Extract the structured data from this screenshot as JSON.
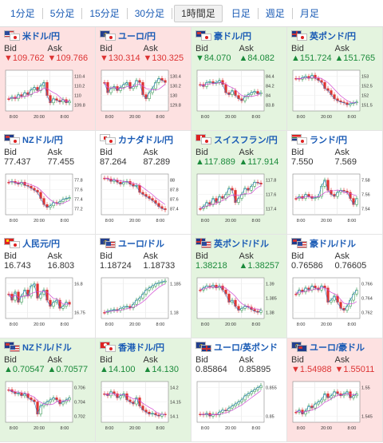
{
  "tabs": [
    {
      "label": "1分足",
      "active": false
    },
    {
      "label": "5分足",
      "active": false
    },
    {
      "label": "15分足",
      "active": false
    },
    {
      "label": "30分足",
      "active": false
    },
    {
      "label": "1時間足",
      "active": true
    },
    {
      "label": "日足",
      "active": false
    },
    {
      "label": "週足",
      "active": false
    },
    {
      "label": "月足",
      "active": false
    }
  ],
  "colors": {
    "down": "#d33333",
    "up": "#1a8a3a",
    "link": "#1a5bb5",
    "down_bg": "#fde1e1",
    "up_bg": "#e4f4df",
    "ma_line": "#d24ad2",
    "price_line": "#2a7dcf"
  },
  "bid_label": "Bid",
  "ask_label": "Ask",
  "x_ticks": [
    "8:00",
    "20:00",
    "8:00"
  ],
  "pairs": [
    {
      "name": "米ドル/円",
      "flags": [
        "us",
        "jp"
      ],
      "trend": "down",
      "bid": "▼109.762",
      "ask": "▼109.766",
      "chart_data": {
        "type": "candlestick",
        "yticks": [
          "110.4",
          "110.2",
          "110",
          "109.8"
        ],
        "path": [
          0.7,
          0.66,
          0.7,
          0.6,
          0.64,
          0.55,
          0.6,
          0.48,
          0.42,
          0.5,
          0.38,
          0.3,
          0.62,
          0.8,
          0.7,
          0.74,
          0.78,
          0.72,
          0.8,
          0.76
        ]
      }
    },
    {
      "name": "ユーロ/円",
      "flags": [
        "eu",
        "jp"
      ],
      "trend": "down",
      "bid": "▼130.314",
      "ask": "▼130.325",
      "chart_data": {
        "type": "candlestick",
        "yticks": [
          "130.4",
          "130.2",
          "130",
          "129.8"
        ],
        "path": [
          0.3,
          0.55,
          0.45,
          0.4,
          0.5,
          0.42,
          0.35,
          0.3,
          0.45,
          0.4,
          0.25,
          0.3,
          0.6,
          0.7,
          0.55,
          0.45,
          0.3,
          0.2,
          0.25,
          0.3
        ]
      }
    },
    {
      "name": "豪ドル/円",
      "flags": [
        "au",
        "jp"
      ],
      "trend": "up",
      "bid": "▼84.070",
      "ask": "▲84.082",
      "chart_data": {
        "type": "candlestick",
        "yticks": [
          "84.4",
          "84.2",
          "84",
          "83.8"
        ],
        "path": [
          0.35,
          0.4,
          0.3,
          0.28,
          0.32,
          0.3,
          0.25,
          0.35,
          0.55,
          0.6,
          0.5,
          0.62,
          0.7,
          0.75,
          0.65,
          0.6,
          0.55,
          0.52,
          0.58,
          0.55
        ]
      }
    },
    {
      "name": "英ポンド/円",
      "flags": [
        "gb",
        "jp"
      ],
      "trend": "up",
      "bid": "▲151.724",
      "ask": "▲151.765",
      "chart_data": {
        "type": "candlestick",
        "yticks": [
          "153",
          "152.5",
          "152",
          "151.5"
        ],
        "path": [
          0.2,
          0.22,
          0.18,
          0.15,
          0.2,
          0.12,
          0.2,
          0.25,
          0.3,
          0.45,
          0.5,
          0.6,
          0.7,
          0.75,
          0.78,
          0.8,
          0.85,
          0.82,
          0.8,
          0.78
        ]
      }
    },
    {
      "name": "NZドル/円",
      "flags": [
        "nz",
        "jp"
      ],
      "trend": "flat",
      "bid": "77.437",
      "ask": "77.455",
      "chart_data": {
        "type": "candlestick",
        "yticks": [
          "77.8",
          "77.6",
          "77.4",
          "77.2"
        ],
        "path": [
          0.2,
          0.18,
          0.22,
          0.25,
          0.2,
          0.28,
          0.3,
          0.35,
          0.4,
          0.45,
          0.6,
          0.75,
          0.82,
          0.78,
          0.7,
          0.72,
          0.68,
          0.62,
          0.6,
          0.58
        ]
      }
    },
    {
      "name": "カナダドル/円",
      "flags": [
        "ca",
        "jp"
      ],
      "trend": "flat",
      "bid": "87.264",
      "ask": "87.289",
      "chart_data": {
        "type": "candlestick",
        "yticks": [
          "88",
          "87.8",
          "87.6",
          "87.4"
        ],
        "path": [
          0.1,
          0.12,
          0.18,
          0.15,
          0.2,
          0.25,
          0.2,
          0.18,
          0.25,
          0.3,
          0.28,
          0.45,
          0.5,
          0.55,
          0.6,
          0.65,
          0.72,
          0.8,
          0.85,
          0.88
        ]
      }
    },
    {
      "name": "スイスフラン/円",
      "flags": [
        "ch",
        "jp"
      ],
      "trend": "up",
      "bid": "▲117.889",
      "ask": "▲117.914",
      "chart_data": {
        "type": "candlestick",
        "yticks": [
          "117.8",
          "117.6",
          "117.4"
        ],
        "path": [
          0.85,
          0.8,
          0.7,
          0.75,
          0.6,
          0.7,
          0.55,
          0.6,
          0.5,
          0.35,
          0.4,
          0.7,
          0.6,
          0.5,
          0.35,
          0.4,
          0.3,
          0.2,
          0.22,
          0.25
        ]
      }
    },
    {
      "name": "ランド/円",
      "flags": [
        "za",
        "jp"
      ],
      "trend": "flat",
      "bid": "7.550",
      "ask": "7.569",
      "chart_data": {
        "type": "candlestick",
        "yticks": [
          "7.58",
          "7.56",
          "7.54"
        ],
        "path": [
          0.6,
          0.55,
          0.6,
          0.5,
          0.55,
          0.6,
          0.58,
          0.55,
          0.3,
          0.15,
          0.4,
          0.5,
          0.55,
          0.45,
          0.4,
          0.42,
          0.45,
          0.6,
          0.75,
          0.6
        ]
      }
    },
    {
      "name": "人民元/円",
      "flags": [
        "cn",
        "jp"
      ],
      "trend": "flat",
      "bid": "16.743",
      "ask": "16.803",
      "chart_data": {
        "type": "candlestick",
        "yticks": [
          "16.8",
          "16.75"
        ],
        "path": [
          0.4,
          0.55,
          0.35,
          0.6,
          0.45,
          0.3,
          0.45,
          0.2,
          0.15,
          0.5,
          0.4,
          0.3,
          0.55,
          0.7,
          0.6,
          0.55,
          0.75,
          0.7,
          0.6,
          0.65
        ]
      }
    },
    {
      "name": "ユーロ/ドル",
      "flags": [
        "eu",
        "us"
      ],
      "trend": "flat",
      "bid": "1.18724",
      "ask": "1.18733",
      "chart_data": {
        "type": "candlestick",
        "yticks": [
          "1.185",
          "1.18"
        ],
        "path": [
          0.85,
          0.82,
          0.8,
          0.78,
          0.8,
          0.75,
          0.72,
          0.7,
          0.74,
          0.65,
          0.55,
          0.5,
          0.4,
          0.3,
          0.25,
          0.2,
          0.15,
          0.12,
          0.1,
          0.08
        ]
      }
    },
    {
      "name": "英ポンド/ドル",
      "flags": [
        "gb",
        "us"
      ],
      "trend": "up",
      "bid": "1.38218",
      "ask": "▲1.38257",
      "chart_data": {
        "type": "candlestick",
        "yticks": [
          "1.39",
          "1.385",
          "1.38"
        ],
        "path": [
          0.3,
          0.25,
          0.2,
          0.22,
          0.18,
          0.25,
          0.2,
          0.3,
          0.4,
          0.6,
          0.55,
          0.7,
          0.8,
          0.75,
          0.7,
          0.72,
          0.78,
          0.82,
          0.85,
          0.8
        ]
      }
    },
    {
      "name": "豪ドル/ドル",
      "flags": [
        "au",
        "us"
      ],
      "trend": "flat",
      "bid": "0.76586",
      "ask": "0.76605",
      "chart_data": {
        "type": "candlestick",
        "yticks": [
          "0.766",
          "0.764",
          "0.762"
        ],
        "path": [
          0.4,
          0.3,
          0.35,
          0.25,
          0.3,
          0.2,
          0.25,
          0.3,
          0.2,
          0.25,
          0.6,
          0.55,
          0.45,
          0.6,
          0.75,
          0.8,
          0.7,
          0.55,
          0.4,
          0.3
        ]
      }
    },
    {
      "name": "NZドル/ドル",
      "flags": [
        "nz",
        "us"
      ],
      "trend": "up",
      "bid": "▲0.70547",
      "ask": "▲0.70577",
      "chart_data": {
        "type": "candlestick",
        "yticks": [
          "0.706",
          "0.704",
          "0.702"
        ],
        "path": [
          0.2,
          0.25,
          0.3,
          0.28,
          0.35,
          0.3,
          0.4,
          0.45,
          0.5,
          0.8,
          0.6,
          0.55,
          0.5,
          0.45,
          0.4,
          0.45,
          0.55,
          0.5,
          0.45,
          0.4
        ]
      }
    },
    {
      "name": "香港ドル/円",
      "flags": [
        "hk",
        "jp"
      ],
      "trend": "up",
      "bid": "▲14.100",
      "ask": "▲14.130",
      "chart_data": {
        "type": "candlestick",
        "yticks": [
          "14.2",
          "14.15",
          "14.1"
        ],
        "path": [
          0.3,
          0.35,
          0.25,
          0.3,
          0.4,
          0.35,
          0.3,
          0.45,
          0.5,
          0.55,
          0.4,
          0.6,
          0.7,
          0.75,
          0.8,
          0.78,
          0.82,
          0.85,
          0.8,
          0.82
        ]
      }
    },
    {
      "name": "ユーロ/英ポンド",
      "flags": [
        "eu",
        "gb"
      ],
      "trend": "flat",
      "bid": "0.85864",
      "ask": "0.85895",
      "chart_data": {
        "type": "candlestick",
        "yticks": [
          "0.855",
          "0.85"
        ],
        "path": [
          0.8,
          0.82,
          0.78,
          0.85,
          0.8,
          0.82,
          0.75,
          0.7,
          0.72,
          0.65,
          0.6,
          0.55,
          0.5,
          0.45,
          0.35,
          0.3,
          0.25,
          0.2,
          0.15,
          0.1
        ]
      }
    },
    {
      "name": "ユーロ/豪ドル",
      "flags": [
        "eu",
        "au"
      ],
      "trend": "down",
      "bid": "▼1.54988",
      "ask": "▼1.55011",
      "chart_data": {
        "type": "candlestick",
        "yticks": [
          "1.55",
          "1.545"
        ],
        "path": [
          0.75,
          0.7,
          0.8,
          0.72,
          0.6,
          0.65,
          0.55,
          0.5,
          0.45,
          0.3,
          0.4,
          0.35,
          0.25,
          0.3,
          0.35,
          0.3,
          0.25,
          0.4,
          0.35,
          0.3
        ]
      }
    }
  ]
}
